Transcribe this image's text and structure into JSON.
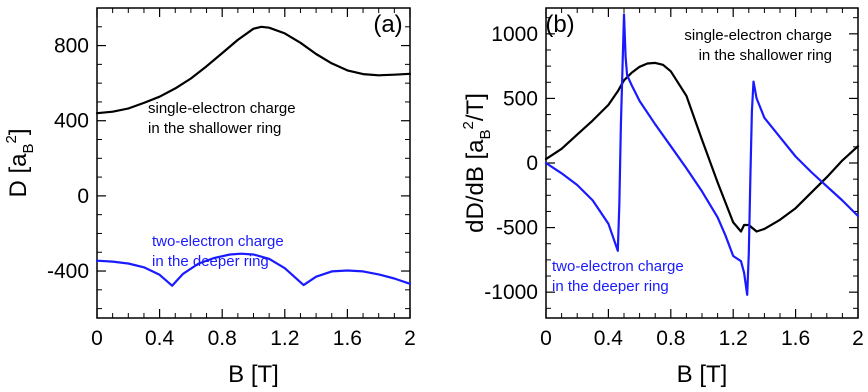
{
  "chart_data": [
    {
      "type": "line",
      "panel_label": "(a)",
      "xlabel": "B [T]",
      "ylabel_main": "D [a",
      "ylabel_sub": "B",
      "ylabel_sup": "2",
      "ylabel_end": "]",
      "xlim": [
        0,
        2
      ],
      "ylim": [
        -650,
        1000
      ],
      "xticks": [
        0,
        0.4,
        0.8,
        1.2,
        1.6,
        2
      ],
      "xtick_labels": [
        "0",
        "0.4",
        "0.8",
        "1.2",
        "1.6",
        "2"
      ],
      "yticks": [
        -400,
        0,
        400,
        800
      ],
      "ytick_labels": [
        "-400",
        "0",
        "400",
        "800"
      ],
      "grid": false,
      "series": [
        {
          "color": "#000000",
          "x": [
            0,
            0.1,
            0.2,
            0.3,
            0.4,
            0.5,
            0.6,
            0.7,
            0.8,
            0.9,
            1.0,
            1.05,
            1.1,
            1.2,
            1.3,
            1.4,
            1.5,
            1.6,
            1.7,
            1.8,
            1.9,
            2.0
          ],
          "y": [
            440,
            448,
            465,
            495,
            528,
            572,
            625,
            690,
            760,
            830,
            890,
            900,
            895,
            865,
            815,
            755,
            705,
            668,
            648,
            642,
            645,
            650
          ]
        },
        {
          "color": "#1a1aff",
          "x": [
            0,
            0.1,
            0.2,
            0.3,
            0.4,
            0.48,
            0.55,
            0.65,
            0.75,
            0.85,
            0.92,
            1.0,
            1.1,
            1.2,
            1.32,
            1.4,
            1.5,
            1.6,
            1.7,
            1.8,
            1.9,
            2.0
          ],
          "y": [
            -345,
            -350,
            -360,
            -380,
            -420,
            -478,
            -415,
            -360,
            -330,
            -312,
            -308,
            -312,
            -335,
            -385,
            -475,
            -430,
            -402,
            -397,
            -402,
            -418,
            -440,
            -468
          ]
        }
      ],
      "annotations": [
        {
          "color": "#000000",
          "lines": [
            "single-electron charge",
            "in the shallower  ring"
          ]
        },
        {
          "color": "#1a1aff",
          "lines": [
            "two-electron charge",
            "in the deeper ring"
          ]
        }
      ]
    },
    {
      "type": "line",
      "panel_label": "(b)",
      "xlabel": "B [T]",
      "ylabel_main": "dD/dB [a",
      "ylabel_sub": "B",
      "ylabel_sup": "2",
      "ylabel_end": "/T]",
      "xlim": [
        0,
        2
      ],
      "ylim": [
        -1200,
        1200
      ],
      "xticks": [
        0,
        0.4,
        0.8,
        1.2,
        1.6,
        2
      ],
      "xtick_labels": [
        "0",
        "0.4",
        "0.8",
        "1.2",
        "1.6",
        "2"
      ],
      "yticks": [
        -1000,
        -500,
        0,
        500,
        1000
      ],
      "ytick_labels": [
        "-1000",
        "-500",
        "0",
        "500",
        "1000"
      ],
      "grid": false,
      "series": [
        {
          "color": "#000000",
          "x": [
            0,
            0.1,
            0.2,
            0.3,
            0.4,
            0.46,
            0.5,
            0.55,
            0.6,
            0.65,
            0.7,
            0.75,
            0.8,
            0.9,
            1.0,
            1.1,
            1.2,
            1.25,
            1.27,
            1.3,
            1.35,
            1.4,
            1.5,
            1.6,
            1.7,
            1.8,
            1.9,
            2.0
          ],
          "y": [
            30,
            110,
            220,
            330,
            450,
            555,
            640,
            700,
            745,
            770,
            775,
            760,
            710,
            520,
            180,
            -150,
            -460,
            -530,
            -480,
            -480,
            -530,
            -510,
            -440,
            -350,
            -230,
            -110,
            20,
            130
          ]
        },
        {
          "color": "#1a1aff",
          "x": [
            0,
            0.05,
            0.1,
            0.2,
            0.3,
            0.4,
            0.46,
            0.47,
            0.48,
            0.5,
            0.51,
            0.52,
            0.55,
            0.6,
            0.7,
            0.8,
            0.9,
            1.0,
            1.1,
            1.15,
            1.2,
            1.25,
            1.27,
            1.29,
            1.3,
            1.31,
            1.32,
            1.33,
            1.35,
            1.4,
            1.5,
            1.6,
            1.7,
            1.8,
            1.9,
            2.0
          ],
          "y": [
            0,
            -40,
            -80,
            -170,
            -290,
            -470,
            -680,
            -330,
            300,
            1150,
            820,
            680,
            600,
            480,
            300,
            130,
            -40,
            -220,
            -420,
            -560,
            -720,
            -760,
            -850,
            -1020,
            -700,
            -100,
            400,
            630,
            500,
            350,
            200,
            50,
            -70,
            -180,
            -290,
            -410
          ]
        }
      ],
      "annotations": [
        {
          "color": "#000000",
          "lines": [
            "single-electron charge",
            "in the shallower  ring"
          ]
        },
        {
          "color": "#1a1aff",
          "lines": [
            "two-electron charge",
            "in the deeper ring"
          ]
        }
      ]
    }
  ]
}
